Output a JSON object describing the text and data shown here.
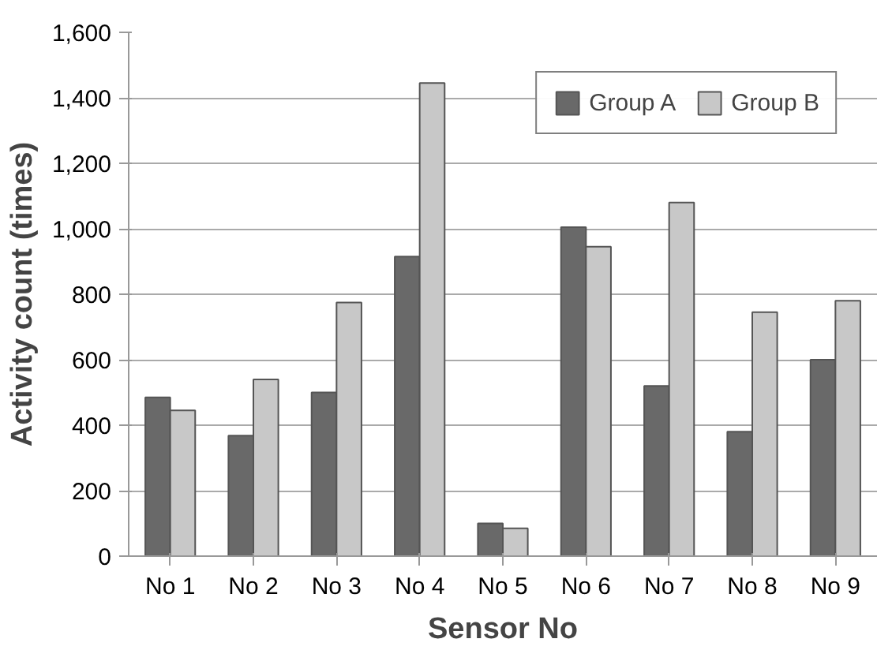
{
  "chart_data": {
    "type": "bar",
    "xlabel": "Sensor No",
    "ylabel": "Activity count (times)",
    "categories": [
      "No 1",
      "No 2",
      "No 3",
      "No 4",
      "No 5",
      "No 6",
      "No 7",
      "No 8",
      "No 9"
    ],
    "series": [
      {
        "name": "Group A",
        "color": "#696969",
        "values": [
          485,
          368,
          500,
          915,
          100,
          1005,
          520,
          380,
          600
        ]
      },
      {
        "name": "Group B",
        "color": "#c8c8c8",
        "values": [
          445,
          540,
          775,
          1445,
          85,
          945,
          1080,
          745,
          780
        ]
      }
    ],
    "ylim": [
      0,
      1600
    ],
    "yticks": [
      {
        "value": 0,
        "label": "0"
      },
      {
        "value": 200,
        "label": "200"
      },
      {
        "value": 400,
        "label": "400"
      },
      {
        "value": 600,
        "label": "600"
      },
      {
        "value": 800,
        "label": "800"
      },
      {
        "value": 1000,
        "label": "1,000"
      },
      {
        "value": 1200,
        "label": "1,200"
      },
      {
        "value": 1400,
        "label": "1,400"
      },
      {
        "value": 1600,
        "label": "1,600"
      }
    ],
    "grid": "y",
    "legend": "top right"
  }
}
